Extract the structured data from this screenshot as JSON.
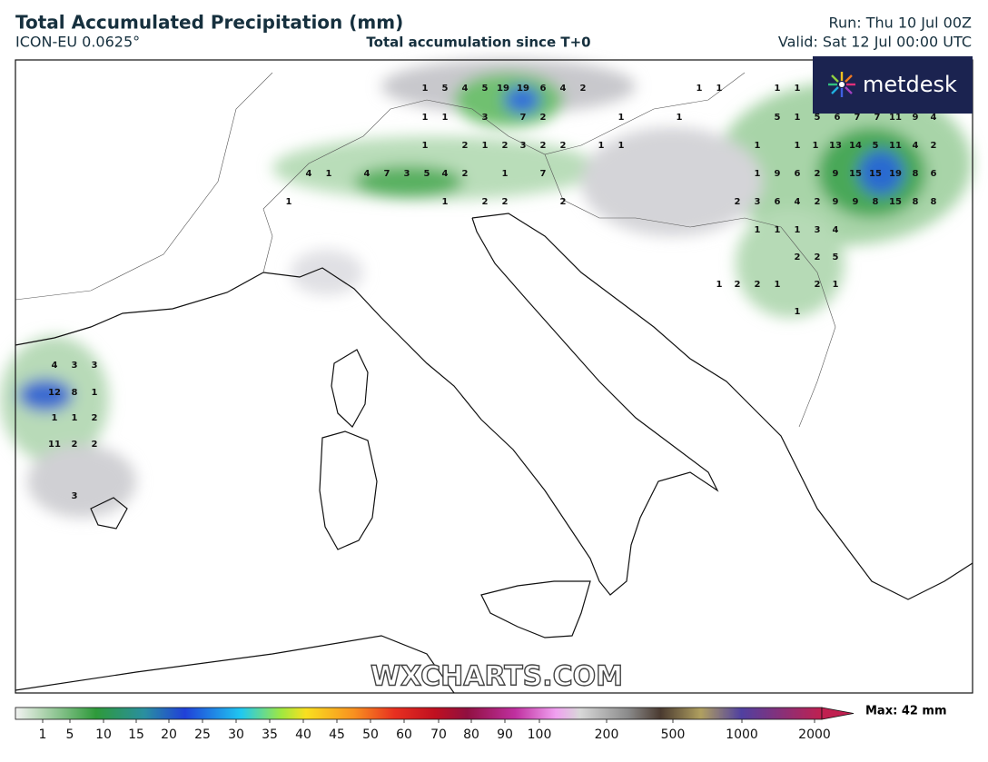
{
  "header": {
    "title": "Total Accumulated Precipitation (mm)",
    "model": "ICON-EU 0.0625°",
    "subtitle": "Total accumulation since T+0",
    "run": "Run: Thu 10 Jul 00Z",
    "valid": "Valid: Sat 12 Jul 00:00 UTC"
  },
  "logo": "metdesk",
  "watermark": "WXCHARTS.COM",
  "map_labels": [
    1,
    5,
    4,
    5,
    19,
    19,
    6,
    4,
    2,
    1,
    1,
    1,
    1,
    1,
    1,
    3,
    7,
    2,
    1,
    1,
    5,
    1,
    5,
    6,
    7,
    7,
    11,
    9,
    4,
    1,
    2,
    1,
    2,
    3,
    2,
    2,
    1,
    1,
    1,
    1,
    1,
    13,
    14,
    5,
    11,
    4,
    2,
    4,
    1,
    4,
    7,
    3,
    5,
    4,
    2,
    1,
    7,
    1,
    9,
    6,
    2,
    9,
    15,
    15,
    19,
    8,
    6,
    1,
    1,
    2,
    2,
    2,
    2,
    3,
    6,
    4,
    2,
    9,
    9,
    8,
    15,
    8,
    8,
    1,
    1,
    1,
    3,
    4,
    2,
    2,
    5,
    1,
    2,
    2,
    1,
    2,
    1,
    1,
    4,
    3,
    3,
    12,
    8,
    1,
    1,
    1,
    2,
    11,
    2,
    2,
    3
  ],
  "colorbar": {
    "ticks": [
      1,
      5,
      10,
      15,
      20,
      25,
      30,
      35,
      40,
      45,
      50,
      60,
      70,
      80,
      90,
      100,
      200,
      500,
      1000,
      2000
    ],
    "max_label": "Max: 42 mm"
  }
}
